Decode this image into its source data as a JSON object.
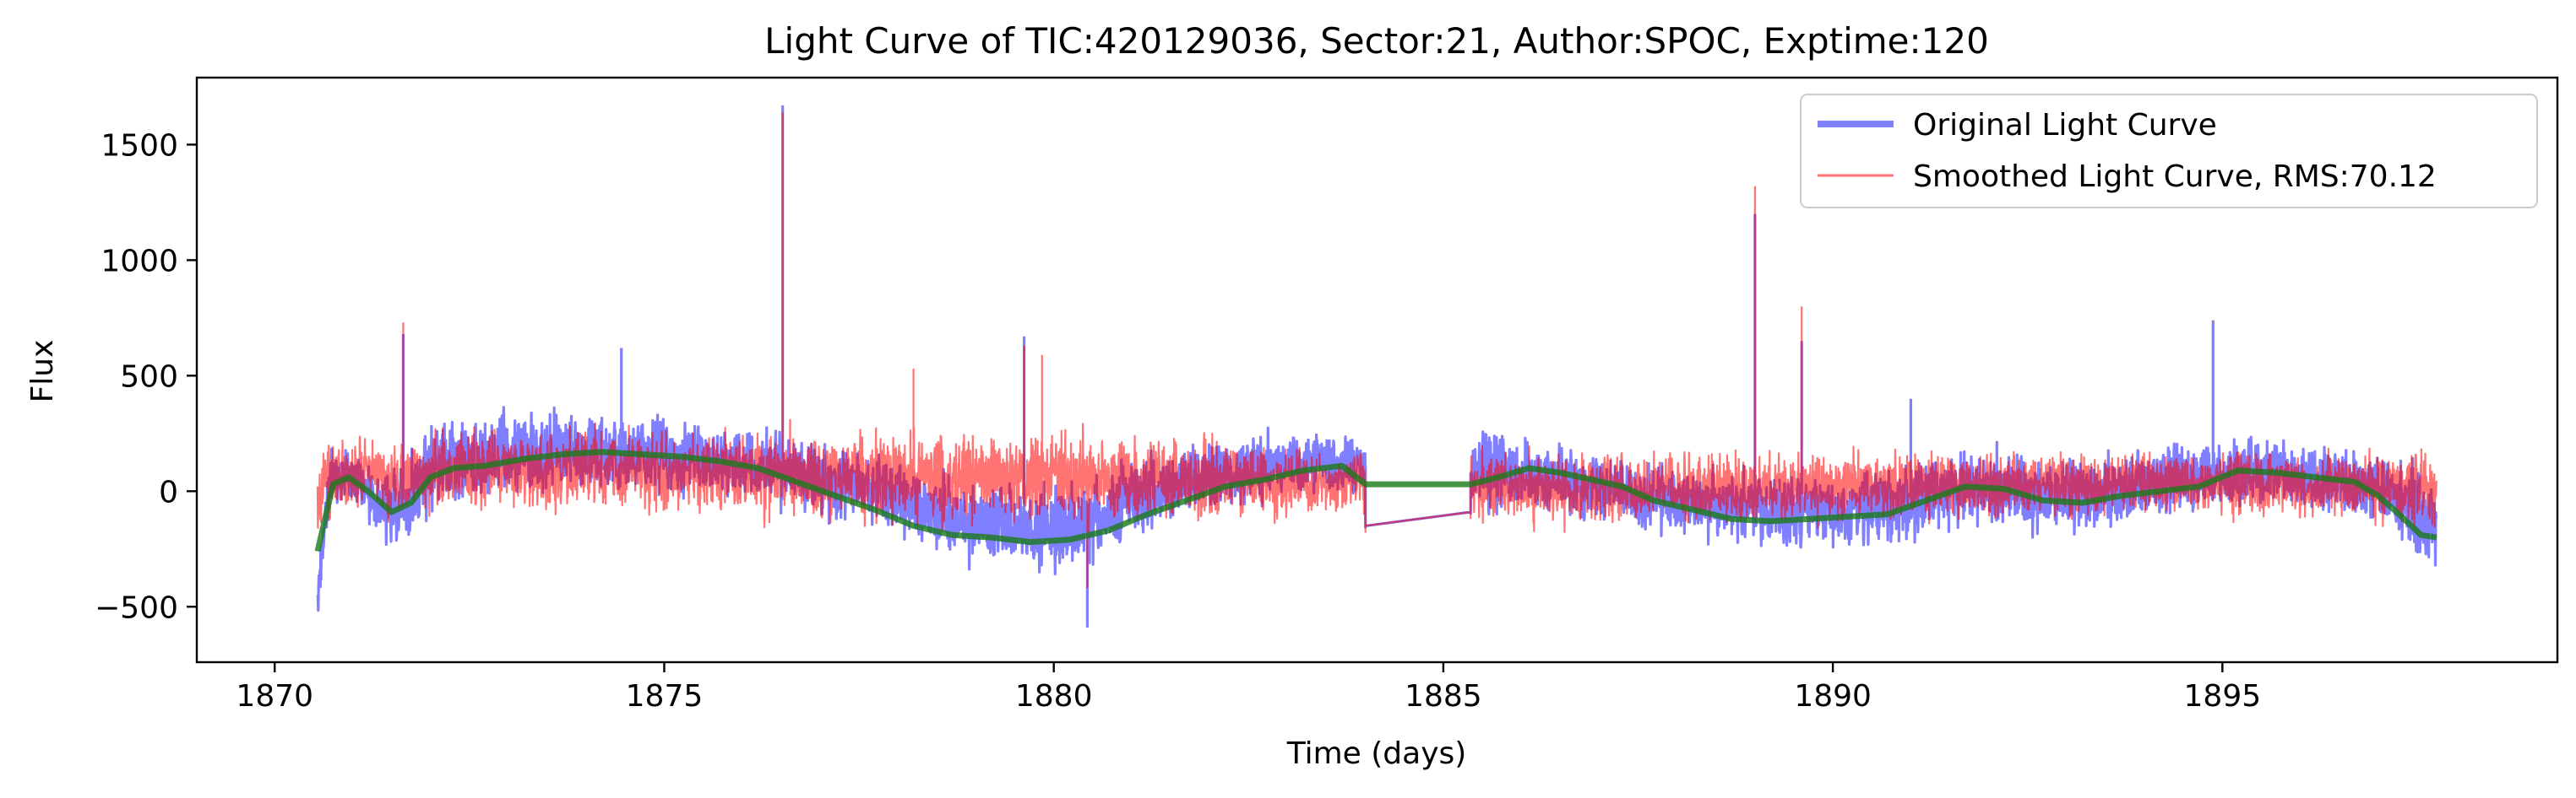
{
  "chart_data": {
    "type": "line",
    "title": "Light Curve of TIC:420129036, Sector:21, Author:SPOC, Exptime:120",
    "xlabel": "Time (days)",
    "ylabel": "Flux",
    "xlim": [
      1869.0,
      1899.3
    ],
    "ylim": [
      -740,
      1790
    ],
    "xticks": [
      {
        "value": 1870,
        "label": "1870"
      },
      {
        "value": 1875,
        "label": "1875"
      },
      {
        "value": 1880,
        "label": "1880"
      },
      {
        "value": 1885,
        "label": "1885"
      },
      {
        "value": 1890,
        "label": "1890"
      },
      {
        "value": 1895,
        "label": "1895"
      }
    ],
    "yticks": [
      {
        "value": -500,
        "label": "−500"
      },
      {
        "value": 0,
        "label": "0"
      },
      {
        "value": 500,
        "label": "500"
      },
      {
        "value": 1000,
        "label": "1000"
      },
      {
        "value": 1500,
        "label": "1500"
      }
    ],
    "grid": false,
    "legend_position": "top-right",
    "gap": [
      1884.0,
      1885.35
    ],
    "series": [
      {
        "name": "Original Light Curve",
        "color": "#0000ff",
        "opacity": 0.5,
        "role": "original",
        "envelope": [
          [
            1870.55,
            -600,
            -330
          ],
          [
            1870.7,
            -120,
            200
          ],
          [
            1870.9,
            -50,
            210
          ],
          [
            1871.1,
            -80,
            170
          ],
          [
            1871.4,
            -220,
            120
          ],
          [
            1871.6,
            -260,
            110
          ],
          [
            1871.8,
            -200,
            200
          ],
          [
            1872.0,
            -110,
            330
          ],
          [
            1872.5,
            -60,
            360
          ],
          [
            1873.0,
            -40,
            380
          ],
          [
            1873.5,
            -30,
            370
          ],
          [
            1874.0,
            -20,
            360
          ],
          [
            1874.5,
            -20,
            350
          ],
          [
            1875.0,
            -30,
            340
          ],
          [
            1875.5,
            -50,
            320
          ],
          [
            1876.0,
            -60,
            300
          ],
          [
            1876.5,
            -90,
            270
          ],
          [
            1877.0,
            -120,
            230
          ],
          [
            1877.5,
            -160,
            200
          ],
          [
            1878.0,
            -200,
            160
          ],
          [
            1878.5,
            -280,
            90
          ],
          [
            1879.0,
            -330,
            60
          ],
          [
            1879.5,
            -360,
            40
          ],
          [
            1880.0,
            -380,
            30
          ],
          [
            1880.5,
            -340,
            80
          ],
          [
            1881.0,
            -240,
            160
          ],
          [
            1881.5,
            -170,
            210
          ],
          [
            1882.0,
            -110,
            240
          ],
          [
            1882.5,
            -70,
            260
          ],
          [
            1883.0,
            -50,
            270
          ],
          [
            1883.5,
            -30,
            280
          ],
          [
            1883.95,
            -40,
            260
          ],
          [
            1885.35,
            -90,
            250
          ],
          [
            1885.6,
            -100,
            300
          ],
          [
            1886.0,
            -90,
            260
          ],
          [
            1886.5,
            -110,
            190
          ],
          [
            1887.0,
            -150,
            170
          ],
          [
            1887.5,
            -180,
            150
          ],
          [
            1888.0,
            -210,
            130
          ],
          [
            1888.5,
            -240,
            110
          ],
          [
            1889.0,
            -260,
            100
          ],
          [
            1889.5,
            -270,
            90
          ],
          [
            1890.0,
            -260,
            100
          ],
          [
            1890.5,
            -250,
            110
          ],
          [
            1891.0,
            -230,
            130
          ],
          [
            1891.5,
            -180,
            190
          ],
          [
            1892.0,
            -160,
            210
          ],
          [
            1892.5,
            -190,
            170
          ],
          [
            1893.0,
            -200,
            160
          ],
          [
            1893.5,
            -180,
            170
          ],
          [
            1894.0,
            -160,
            190
          ],
          [
            1894.5,
            -120,
            230
          ],
          [
            1895.0,
            -90,
            250
          ],
          [
            1895.5,
            -80,
            240
          ],
          [
            1896.0,
            -90,
            230
          ],
          [
            1896.5,
            -120,
            220
          ],
          [
            1897.0,
            -180,
            200
          ],
          [
            1897.4,
            -260,
            150
          ],
          [
            1897.75,
            -350,
            40
          ]
        ],
        "spikes": [
          [
            1871.65,
            680
          ],
          [
            1876.52,
            1670
          ],
          [
            1879.62,
            670
          ],
          [
            1880.43,
            -590
          ],
          [
            1874.45,
            620
          ],
          [
            1889.0,
            1200
          ],
          [
            1889.6,
            650
          ],
          [
            1891.0,
            400
          ],
          [
            1894.88,
            740
          ],
          [
            1884.0,
            -160
          ],
          [
            1885.35,
            -100
          ]
        ]
      },
      {
        "name": "Smoothed Light Curve, RMS:70.12",
        "color": "#ff0000",
        "opacity": 0.55,
        "role": "smoothed",
        "envelope": [
          [
            1870.55,
            -200,
            80
          ],
          [
            1870.7,
            -150,
            290
          ],
          [
            1871.0,
            -110,
            260
          ],
          [
            1871.5,
            -130,
            230
          ],
          [
            1872.0,
            -110,
            270
          ],
          [
            1872.5,
            -100,
            280
          ],
          [
            1873.0,
            -120,
            300
          ],
          [
            1873.5,
            -110,
            290
          ],
          [
            1874.0,
            -120,
            300
          ],
          [
            1874.5,
            -110,
            290
          ],
          [
            1875.0,
            -130,
            290
          ],
          [
            1875.5,
            -120,
            280
          ],
          [
            1876.0,
            -140,
            280
          ],
          [
            1876.5,
            -150,
            290
          ],
          [
            1877.0,
            -150,
            290
          ],
          [
            1877.5,
            -140,
            290
          ],
          [
            1878.0,
            -160,
            300
          ],
          [
            1878.5,
            -170,
            300
          ],
          [
            1879.0,
            -160,
            290
          ],
          [
            1879.5,
            -170,
            300
          ],
          [
            1880.0,
            -170,
            290
          ],
          [
            1880.5,
            -160,
            290
          ],
          [
            1881.0,
            -170,
            280
          ],
          [
            1881.5,
            -160,
            270
          ],
          [
            1882.0,
            -150,
            250
          ],
          [
            1882.5,
            -130,
            220
          ],
          [
            1883.0,
            -120,
            200
          ],
          [
            1883.5,
            -110,
            190
          ],
          [
            1883.95,
            -120,
            180
          ],
          [
            1885.35,
            -150,
            200
          ],
          [
            1886.0,
            -170,
            200
          ],
          [
            1886.5,
            -170,
            190
          ],
          [
            1887.0,
            -170,
            190
          ],
          [
            1887.5,
            -160,
            190
          ],
          [
            1888.0,
            -160,
            190
          ],
          [
            1888.5,
            -150,
            180
          ],
          [
            1889.0,
            -150,
            180
          ],
          [
            1889.5,
            -150,
            180
          ],
          [
            1890.0,
            -150,
            180
          ],
          [
            1890.5,
            -140,
            190
          ],
          [
            1891.0,
            -140,
            190
          ],
          [
            1891.5,
            -130,
            200
          ],
          [
            1892.0,
            -130,
            200
          ],
          [
            1892.5,
            -130,
            190
          ],
          [
            1893.0,
            -130,
            190
          ],
          [
            1893.5,
            -120,
            190
          ],
          [
            1894.0,
            -120,
            190
          ],
          [
            1894.5,
            -120,
            190
          ],
          [
            1895.0,
            -130,
            190
          ],
          [
            1895.5,
            -130,
            180
          ],
          [
            1896.0,
            -130,
            180
          ],
          [
            1896.5,
            -140,
            180
          ],
          [
            1897.0,
            -150,
            190
          ],
          [
            1897.4,
            -160,
            200
          ],
          [
            1897.75,
            -180,
            210
          ]
        ],
        "spikes": [
          [
            1871.65,
            730
          ],
          [
            1876.52,
            1640
          ],
          [
            1879.62,
            630
          ],
          [
            1879.85,
            590
          ],
          [
            1878.2,
            530
          ],
          [
            1889.0,
            1320
          ],
          [
            1889.6,
            800
          ],
          [
            1884.0,
            -180
          ],
          [
            1885.35,
            -120
          ],
          [
            1880.43,
            -420
          ]
        ]
      },
      {
        "role": "trend",
        "color": "#1a7a1a",
        "opacity": 0.8,
        "x": [
          1870.55,
          1870.75,
          1870.95,
          1871.2,
          1871.5,
          1871.75,
          1872.0,
          1872.3,
          1872.7,
          1873.2,
          1873.7,
          1874.2,
          1874.7,
          1875.2,
          1875.7,
          1876.2,
          1876.7,
          1877.2,
          1877.7,
          1878.2,
          1878.7,
          1879.2,
          1879.7,
          1880.2,
          1880.7,
          1881.2,
          1881.7,
          1882.2,
          1882.7,
          1883.2,
          1883.7,
          1884.0,
          1885.35,
          1885.7,
          1886.1,
          1886.5,
          1886.9,
          1887.3,
          1887.7,
          1888.2,
          1888.7,
          1889.2,
          1889.7,
          1890.2,
          1890.7,
          1891.2,
          1891.7,
          1892.2,
          1892.7,
          1893.2,
          1893.7,
          1894.2,
          1894.7,
          1895.2,
          1895.7,
          1896.2,
          1896.7,
          1897.0,
          1897.3,
          1897.55,
          1897.75
        ],
        "y": [
          -260,
          30,
          60,
          0,
          -90,
          -50,
          60,
          100,
          110,
          140,
          160,
          170,
          160,
          150,
          130,
          100,
          40,
          -20,
          -80,
          -150,
          -190,
          -200,
          -220,
          -210,
          -170,
          -100,
          -40,
          20,
          50,
          90,
          110,
          30,
          30,
          60,
          100,
          80,
          50,
          20,
          -40,
          -80,
          -120,
          -130,
          -120,
          -110,
          -100,
          -40,
          20,
          10,
          -40,
          -50,
          -20,
          0,
          20,
          90,
          80,
          60,
          40,
          -20,
          -110,
          -190,
          -200
        ]
      }
    ]
  }
}
